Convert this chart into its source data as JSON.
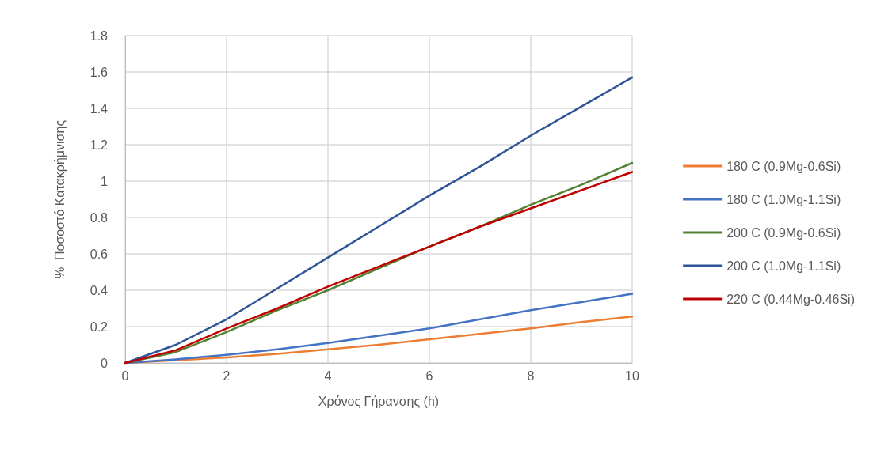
{
  "chart_data": {
    "type": "line",
    "xlabel": "Χρόνος Γήρανσης (h)",
    "ylabel": "%  Ποσοστό Κατακρήμνισης",
    "x": [
      0,
      1,
      2,
      3,
      4,
      5,
      6,
      7,
      8,
      9,
      10
    ],
    "series": [
      {
        "name": "180 C (0.9Mg-0.6Si)",
        "color": "#ed7d31",
        "values": [
          0,
          0.015,
          0.03,
          0.05,
          0.075,
          0.1,
          0.13,
          0.16,
          0.19,
          0.225,
          0.255
        ]
      },
      {
        "name": "180 C (1.0Mg-1.1Si)",
        "color": "#4472c4",
        "values": [
          0,
          0.02,
          0.045,
          0.075,
          0.11,
          0.15,
          0.19,
          0.24,
          0.29,
          0.335,
          0.38
        ]
      },
      {
        "name": "200 C (0.9Mg-0.6Si)",
        "color": "#548235",
        "values": [
          0,
          0.06,
          0.17,
          0.29,
          0.4,
          0.52,
          0.64,
          0.75,
          0.87,
          0.98,
          1.1
        ]
      },
      {
        "name": "200 C (1.0Mg-1.1Si)",
        "color": "#2f5597",
        "values": [
          0,
          0.1,
          0.24,
          0.41,
          0.58,
          0.75,
          0.92,
          1.08,
          1.25,
          1.41,
          1.57
        ]
      },
      {
        "name": "220 C (0.44Mg-0.46Si)",
        "color": "#c00000",
        "values": [
          0,
          0.07,
          0.19,
          0.3,
          0.42,
          0.53,
          0.64,
          0.75,
          0.85,
          0.95,
          1.05
        ]
      }
    ],
    "xlim": [
      0,
      10
    ],
    "xticks": [
      0,
      2,
      4,
      6,
      8,
      10
    ],
    "ylim": [
      0,
      1.8
    ],
    "yticks": [
      0,
      0.2,
      0.4,
      0.6,
      0.8,
      1,
      1.2,
      1.4,
      1.6,
      1.8
    ],
    "grid": true,
    "legend": "right",
    "marker": "none",
    "line_style": "solid"
  }
}
